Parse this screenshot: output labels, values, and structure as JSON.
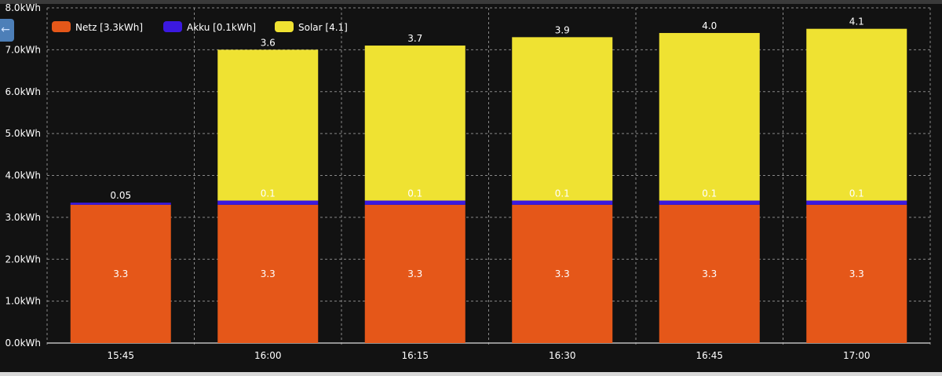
{
  "chart_data": {
    "type": "bar",
    "stacked": true,
    "categories": [
      "15:45",
      "16:00",
      "16:15",
      "16:30",
      "16:45",
      "17:00"
    ],
    "series": [
      {
        "name": "Netz [3.3kWh]",
        "color": "#e55719",
        "values": [
          3.3,
          3.3,
          3.3,
          3.3,
          3.3,
          3.3
        ],
        "labels": [
          "3.3",
          "3.3",
          "3.3",
          "3.3",
          "3.3",
          "3.3"
        ]
      },
      {
        "name": "Akku [0.1kWh]",
        "color": "#3b19e0",
        "values": [
          0.05,
          0.1,
          0.1,
          0.1,
          0.1,
          0.1
        ],
        "labels": [
          "0.05",
          "0.1",
          "0.1",
          "0.1",
          "0.1",
          "0.1"
        ]
      },
      {
        "name": "Solar [4.1]",
        "color": "#efe232",
        "values": [
          0,
          3.6,
          3.7,
          3.9,
          4.0,
          4.1
        ],
        "labels": [
          "",
          "3.6",
          "3.7",
          "3.9",
          "4.0",
          "4.1"
        ]
      }
    ],
    "yticks": [
      "0.0kWh",
      "1.0kWh",
      "2.0kWh",
      "3.0kWh",
      "4.0kWh",
      "5.0kWh",
      "6.0kWh",
      "7.0kWh",
      "8.0kWh"
    ],
    "ylim": [
      0,
      8
    ],
    "grid": true,
    "legend": "top-left"
  },
  "nav": {
    "back_icon": "arrow-left-icon",
    "back_glyph": "←"
  }
}
